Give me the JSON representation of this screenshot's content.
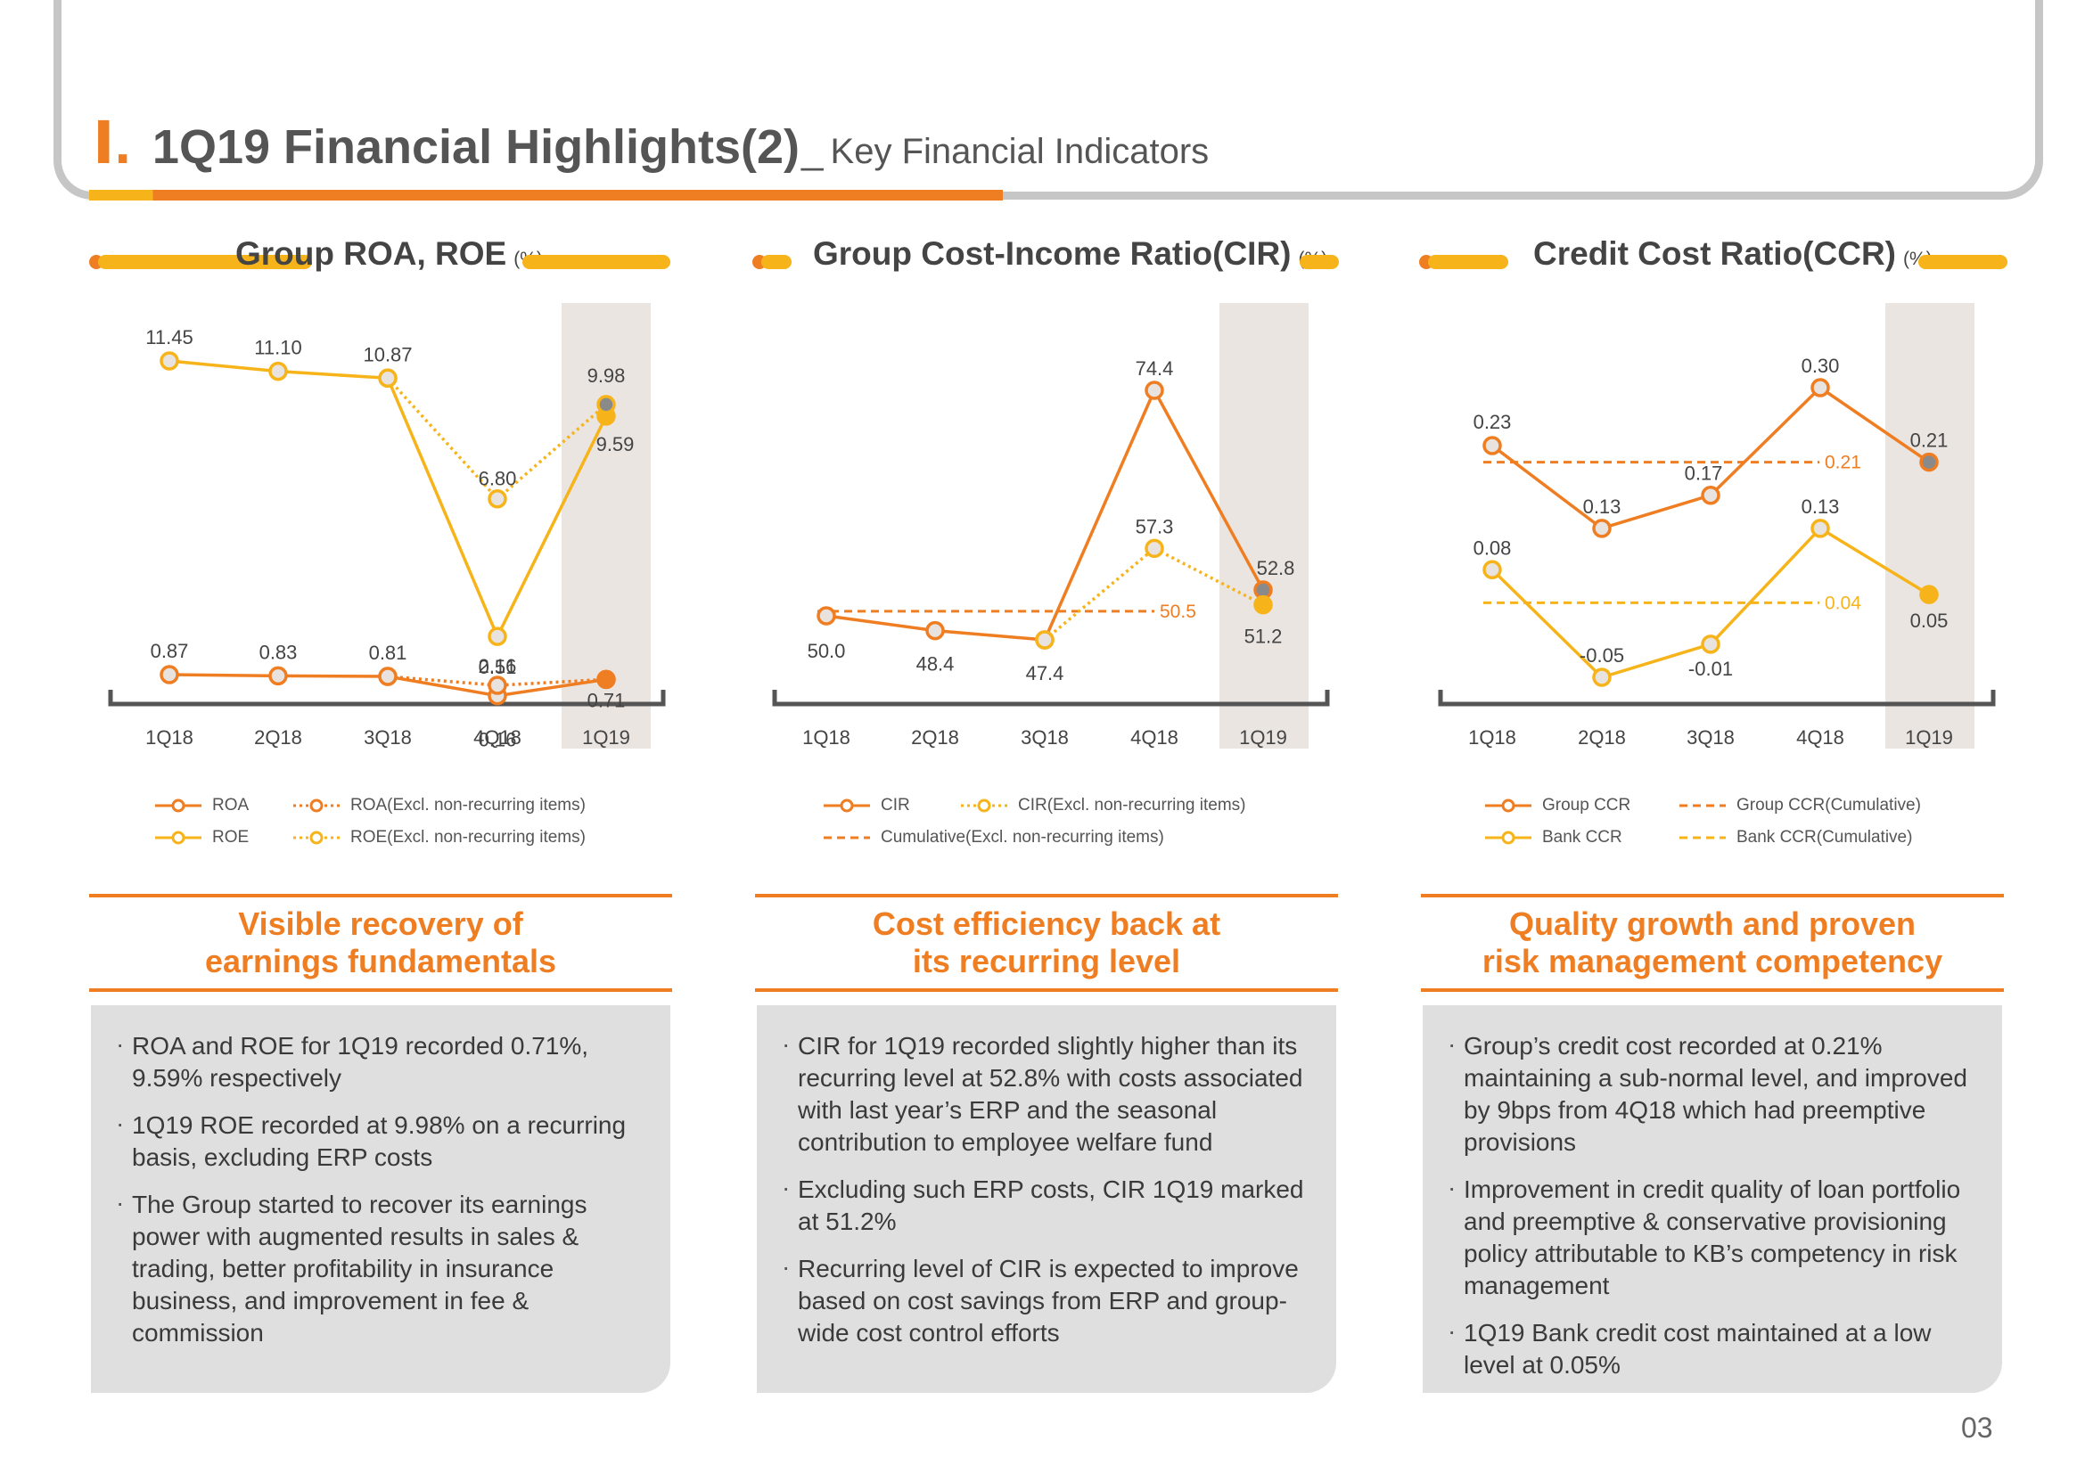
{
  "header": {
    "roman": "Ⅰ.",
    "title": "1Q19 Financial Highlights(2)",
    "separator": "_",
    "subtitle": "Key Financial Indicators"
  },
  "page_number": "03",
  "colors": {
    "orange": "#ef7d22",
    "yellow": "#f7b41a",
    "grey_marker": "#8a8a8a",
    "highlight_band": "#ebe5e1"
  },
  "chart_data": [
    {
      "type": "line",
      "title": "Group ROA, ROE",
      "unit": "(%)",
      "categories": [
        "1Q18",
        "2Q18",
        "3Q18",
        "4Q18",
        "1Q19"
      ],
      "highlight_category": "1Q19",
      "series": [
        {
          "name": "ROA",
          "color": "#ef7d22",
          "style": "solid",
          "values": [
            0.87,
            0.83,
            0.81,
            0.16,
            0.71
          ],
          "labels": [
            "0.87",
            "0.83",
            "0.81",
            "0.16",
            "0.71"
          ]
        },
        {
          "name": "ROA(Excl. non-recurring items)",
          "color": "#ef7d22",
          "style": "dotted",
          "values": [
            null,
            null,
            0.81,
            0.51,
            0.71
          ],
          "labels": [
            null,
            null,
            null,
            "0.51",
            null
          ]
        },
        {
          "name": "ROE",
          "color": "#f7b41a",
          "style": "solid",
          "values": [
            11.45,
            11.1,
            10.87,
            2.16,
            9.59
          ],
          "labels": [
            "11.45",
            "11.10",
            "10.87",
            "2.16",
            "9.59"
          ]
        },
        {
          "name": "ROE(Excl. non-recurring items)",
          "color": "#f7b41a",
          "style": "dotted",
          "values": [
            null,
            null,
            10.87,
            6.8,
            9.98
          ],
          "labels": [
            null,
            null,
            null,
            "6.80",
            "9.98"
          ]
        }
      ],
      "legend": [
        {
          "label": "ROA",
          "color": "#ef7d22",
          "style": "solid"
        },
        {
          "label": "ROA(Excl. non-recurring items)",
          "color": "#ef7d22",
          "style": "dotted"
        },
        {
          "label": "ROE",
          "color": "#f7b41a",
          "style": "solid"
        },
        {
          "label": "ROE(Excl. non-recurring items)",
          "color": "#f7b41a",
          "style": "dotted"
        }
      ]
    },
    {
      "type": "line",
      "title": "Group Cost-Income Ratio(CIR)",
      "unit": "(%)",
      "categories": [
        "1Q18",
        "2Q18",
        "3Q18",
        "4Q18",
        "1Q19"
      ],
      "highlight_category": "1Q19",
      "series": [
        {
          "name": "CIR",
          "color": "#ef7d22",
          "style": "solid",
          "values": [
            50.0,
            48.4,
            47.4,
            74.4,
            52.8
          ],
          "labels": [
            "50.0",
            "48.4",
            "47.4",
            "74.4",
            "52.8"
          ]
        },
        {
          "name": "CIR(Excl. non-recurring items)",
          "color": "#f7b41a",
          "style": "dotted",
          "values": [
            null,
            null,
            47.4,
            57.3,
            51.2
          ],
          "labels": [
            null,
            null,
            null,
            "57.3",
            "51.2"
          ]
        }
      ],
      "reference_lines": [
        {
          "name": "Cumulative(Excl. non-recurring items)",
          "color": "#ef7d22",
          "value": 50.5,
          "label": "50.5"
        }
      ],
      "legend": [
        {
          "label": "CIR",
          "color": "#ef7d22",
          "style": "solid"
        },
        {
          "label": "CIR(Excl. non-recurring items)",
          "color": "#f7b41a",
          "style": "dotted"
        },
        {
          "label": "Cumulative(Excl. non-recurring items)",
          "color": "#ef7d22",
          "style": "dashed"
        }
      ]
    },
    {
      "type": "line",
      "title": "Credit Cost Ratio(CCR)",
      "unit": "(%)",
      "categories": [
        "1Q18",
        "2Q18",
        "3Q18",
        "4Q18",
        "1Q19"
      ],
      "highlight_category": "1Q19",
      "series": [
        {
          "name": "Group CCR",
          "color": "#ef7d22",
          "style": "solid",
          "values": [
            0.23,
            0.13,
            0.17,
            0.3,
            0.21
          ],
          "labels": [
            "0.23",
            "0.13",
            "0.17",
            "0.30",
            "0.21"
          ]
        },
        {
          "name": "Bank CCR",
          "color": "#f7b41a",
          "style": "solid",
          "values": [
            0.08,
            -0.05,
            -0.01,
            0.13,
            0.05
          ],
          "labels": [
            "0.08",
            "-0.05",
            "-0.01",
            "0.13",
            "0.05"
          ]
        }
      ],
      "reference_lines": [
        {
          "name": "Group CCR(Cumulative)",
          "color": "#ef7d22",
          "value": 0.21,
          "label": "0.21"
        },
        {
          "name": "Bank CCR(Cumulative)",
          "color": "#f7b41a",
          "value": 0.04,
          "label": "0.04"
        }
      ],
      "legend": [
        {
          "label": "Group CCR",
          "color": "#ef7d22",
          "style": "solid"
        },
        {
          "label": "Group CCR(Cumulative)",
          "color": "#ef7d22",
          "style": "dashed"
        },
        {
          "label": "Bank CCR",
          "color": "#f7b41a",
          "style": "solid"
        },
        {
          "label": "Bank CCR(Cumulative)",
          "color": "#f7b41a",
          "style": "dashed"
        }
      ]
    }
  ],
  "panels": [
    {
      "headline": "Visible recovery of\nearnings fundamentals",
      "bullets": [
        "ROA and ROE for 1Q19 recorded 0.71%, 9.59% respectively",
        "1Q19 ROE recorded at 9.98% on a recurring basis, excluding ERP costs",
        "The Group started to recover its earnings power with augmented results in sales & trading, better profitability in insurance business, and improvement in fee & commission"
      ]
    },
    {
      "headline": "Cost efficiency back at\nits recurring level",
      "bullets": [
        "CIR for 1Q19 recorded slightly higher than its recurring level at 52.8% with costs associated with last year’s ERP and the seasonal contribution to employee welfare fund",
        "Excluding such ERP costs, CIR 1Q19 marked at 51.2%",
        "Recurring level of CIR is expected to improve based on cost savings from ERP and group-wide cost control efforts"
      ]
    },
    {
      "headline": "Quality growth and proven\nrisk management competency",
      "bullets": [
        "Group’s credit cost recorded at 0.21% maintaining a sub-normal level, and improved by 9bps from 4Q18 which had preemptive provisions",
        "Improvement in credit quality of loan portfolio and preemptive & conservative provisioning policy attributable to KB’s competency in risk management",
        "1Q19 Bank credit cost maintained at a low level at 0.05%"
      ]
    }
  ]
}
